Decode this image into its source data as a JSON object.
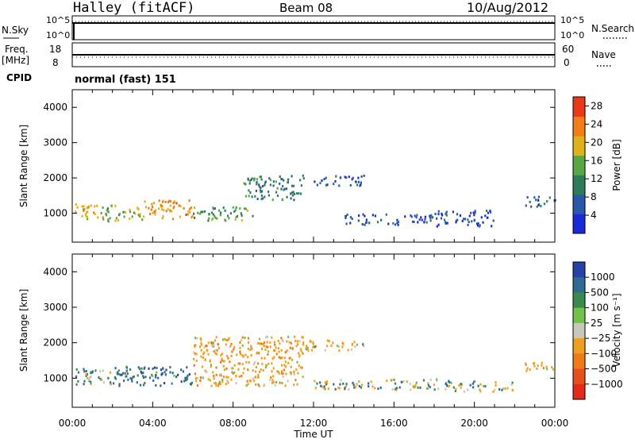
{
  "header": {
    "station": "Halley (fitACF)",
    "beam": "Beam 08",
    "date": "10/Aug/2012"
  },
  "top_panels": {
    "nsky_label": "N.Sky",
    "nsky_ticks": [
      "10^5",
      "10^0"
    ],
    "nsearch_label": "N.Search",
    "freq_label_1": "Freq.",
    "freq_label_2": "[MHz]",
    "freq_ticks": [
      "18",
      "8"
    ],
    "nave_label": "Nave",
    "nave_ticks": [
      "60",
      "0"
    ],
    "cpid_label": "CPID",
    "cpid_value": "normal (fast) 151"
  },
  "panels": {
    "power": {
      "ylabel": "Slant Range [km]",
      "cbar_label": "Power [dB]"
    },
    "velocity": {
      "ylabel": "Slant Range [km]",
      "cbar_label": "Velocity [m s⁻¹]"
    }
  },
  "xaxis": {
    "label": "Time UT"
  },
  "colors": {
    "power": [
      "#1a2bd6",
      "#2a58a8",
      "#2e7d5a",
      "#57a843",
      "#e0b21a",
      "#f07d16",
      "#e83a16"
    ],
    "velocity": [
      "#2641a8",
      "#2f6a92",
      "#3a8a4e",
      "#70c24a",
      "#c8c6bd",
      "#f0a020",
      "#ef7a18",
      "#e8501a",
      "#e62a1a"
    ]
  },
  "chart_data": [
    {
      "type": "heatmap",
      "title": "Power",
      "x_unit": "hours UT",
      "xlim": [
        0,
        24
      ],
      "xticks": [
        "00:00",
        "04:00",
        "08:00",
        "12:00",
        "16:00",
        "20:00",
        "00:00"
      ],
      "ylim": [
        180,
        4500
      ],
      "yticks": [
        1000,
        2000,
        3000,
        4000
      ],
      "colorbar": {
        "label": "Power [dB]",
        "ticks": [
          4,
          8,
          12,
          16,
          20,
          24,
          28
        ],
        "range": [
          0,
          30
        ]
      },
      "echo_regions": [
        {
          "t": [
            0.0,
            1.6
          ],
          "range": [
            850,
            1300
          ],
          "value": 20
        },
        {
          "t": [
            1.6,
            3.5
          ],
          "range": [
            800,
            1250
          ],
          "value": 16
        },
        {
          "t": [
            3.5,
            6.0
          ],
          "range": [
            850,
            1400
          ],
          "value": 22
        },
        {
          "t": [
            6.0,
            9.0
          ],
          "range": [
            800,
            1200
          ],
          "value": 14
        },
        {
          "t": [
            8.5,
            11.5
          ],
          "range": [
            1400,
            2100
          ],
          "value": 10
        },
        {
          "t": [
            12.0,
            14.5
          ],
          "range": [
            1800,
            2100
          ],
          "value": 6
        },
        {
          "t": [
            13.5,
            18.0
          ],
          "range": [
            700,
            1000
          ],
          "value": 6
        },
        {
          "t": [
            18.0,
            21.0
          ],
          "range": [
            650,
            1100
          ],
          "value": 6
        },
        {
          "t": [
            22.5,
            24.0
          ],
          "range": [
            1200,
            1500
          ],
          "value": 8
        }
      ]
    },
    {
      "type": "heatmap",
      "title": "Velocity",
      "x_unit": "hours UT",
      "xlim": [
        0,
        24
      ],
      "xticks": [
        "00:00",
        "04:00",
        "08:00",
        "12:00",
        "16:00",
        "20:00",
        "00:00"
      ],
      "ylim": [
        180,
        4500
      ],
      "yticks": [
        1000,
        2000,
        3000,
        4000
      ],
      "colorbar": {
        "label": "Velocity [m s⁻¹]",
        "ticks": [
          "1000",
          "500",
          "100",
          "25",
          "−25",
          "−100",
          "−500",
          "−1000"
        ]
      },
      "echo_regions": [
        {
          "t": [
            0.0,
            2.0
          ],
          "range": [
            850,
            1300
          ],
          "value": 100
        },
        {
          "t": [
            2.0,
            6.0
          ],
          "range": [
            800,
            1350
          ],
          "value": 300
        },
        {
          "t": [
            6.0,
            11.5
          ],
          "range": [
            800,
            2200
          ],
          "value": -300
        },
        {
          "t": [
            11.5,
            14.5
          ],
          "range": [
            1800,
            2100
          ],
          "value": -200
        },
        {
          "t": [
            12.0,
            18.5
          ],
          "range": [
            700,
            1000
          ],
          "value": 0
        },
        {
          "t": [
            18.5,
            22.0
          ],
          "range": [
            650,
            950
          ],
          "value": 50
        },
        {
          "t": [
            22.5,
            24.0
          ],
          "range": [
            1200,
            1500
          ],
          "value": -300
        }
      ]
    }
  ]
}
